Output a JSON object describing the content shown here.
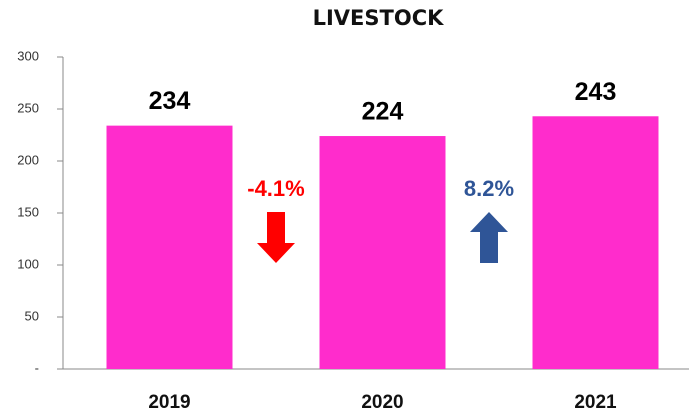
{
  "chart_data": {
    "type": "bar",
    "title": "LIVESTOCK",
    "categories": [
      "2019",
      "2020",
      "2021"
    ],
    "values": [
      234,
      224,
      243
    ],
    "color": "#ff2ccc",
    "ylim": [
      0,
      300
    ],
    "yticks": [
      {
        "value": 0,
        "label": "-"
      },
      50,
      100,
      150,
      200,
      250,
      300
    ],
    "grid": false,
    "annotations": [
      {
        "text": "-4.1%",
        "color": "#ff0000",
        "direction": "down"
      },
      {
        "text": "8.2%",
        "color": "#2f5597",
        "direction": "up"
      }
    ]
  }
}
